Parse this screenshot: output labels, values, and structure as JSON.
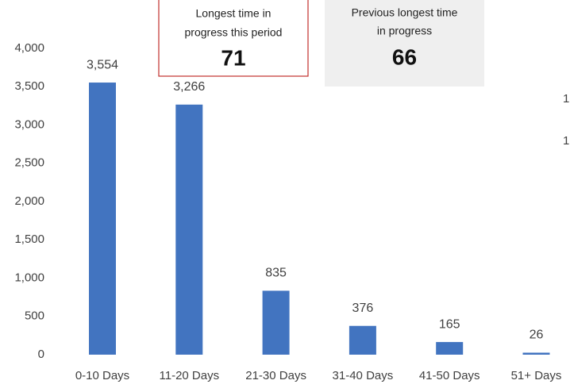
{
  "chart_data": {
    "type": "bar",
    "categories": [
      "0-10 Days",
      "11-20 Days",
      "21-30 Days",
      "31-40 Days",
      "41-50 Days",
      "51+ Days"
    ],
    "values": [
      3554,
      3266,
      835,
      376,
      165,
      26
    ],
    "value_labels": [
      "3,554",
      "3,266",
      "835",
      "376",
      "165",
      "26"
    ],
    "color": "#4274c0",
    "ylim": [
      0,
      4000
    ],
    "yticks": [
      0,
      500,
      {
        "value": 1000,
        "label": "1,000"
      },
      {
        "value": 1500,
        "label": "1,500"
      },
      {
        "value": 2000,
        "label": "2,000"
      },
      {
        "value": 2500,
        "label": "2,500"
      },
      {
        "value": 3000,
        "label": "3,000"
      },
      {
        "value": 3500,
        "label": "3,500"
      },
      {
        "value": 4000,
        "label": "4,000"
      }
    ],
    "grid": false,
    "callouts": [
      {
        "lines": [
          "Longest time in",
          "progress this period"
        ],
        "value": 71,
        "border": "#c0302c",
        "fill": "#ffffff"
      },
      {
        "lines": [
          "Previous longest time",
          "in progress"
        ],
        "value": 66,
        "border": "none",
        "fill": "#efefef"
      }
    ],
    "edge_labels": [
      "1",
      "1"
    ]
  }
}
